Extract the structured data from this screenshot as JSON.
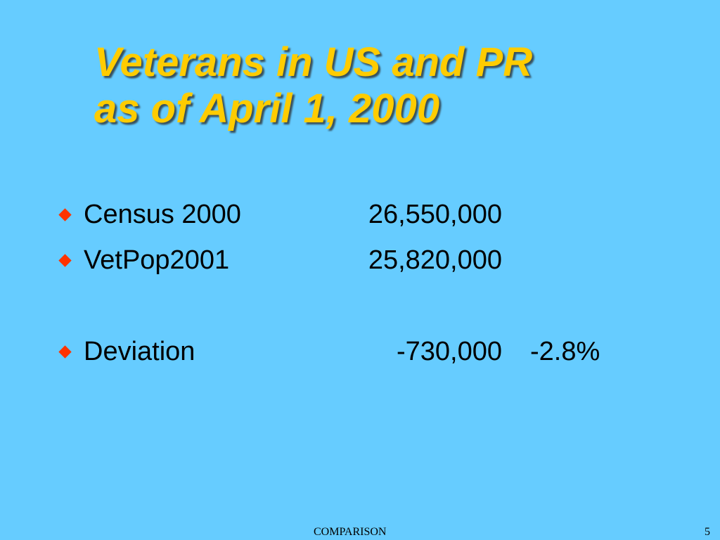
{
  "slide": {
    "background_color": "#66ccff",
    "title_color": "#ffcc00",
    "bullet_color": "#ff3300",
    "title_lines": [
      "Veterans in US and PR",
      "as of April 1, 2000"
    ],
    "bullets": [
      {
        "label": "Census 2000",
        "value": "26,550,000",
        "pct": ""
      },
      {
        "label": "VetPop2001",
        "value": "25,820,000",
        "pct": ""
      },
      {
        "label": "Deviation",
        "value": "-730,000",
        "pct": "-2.8%"
      }
    ],
    "footer": {
      "label": "COMPARISON",
      "page_number": "5"
    }
  }
}
